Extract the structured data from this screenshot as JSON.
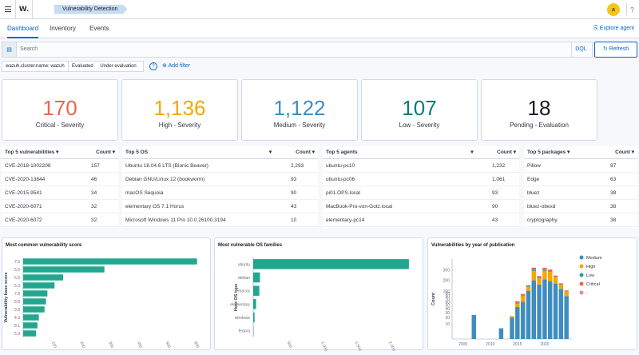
{
  "topbar": {
    "logo": "W.",
    "breadcrumb": "Vulnerability Detection",
    "avatar": "a",
    "help": "?"
  },
  "tabs": [
    {
      "label": "Dashboard",
      "active": true
    },
    {
      "label": "Inventory",
      "active": false
    },
    {
      "label": "Events",
      "active": false
    }
  ],
  "explore_agent": "Explore agent",
  "search": {
    "placeholder": "Search",
    "dql": "DQL",
    "refresh": "Refresh"
  },
  "filters": {
    "cluster": "wazuh.cluster.name: wazuh",
    "evaluated": "Evaluated",
    "under_evaluation": "Under evaluation",
    "add_filter": "Add filter"
  },
  "stats": [
    {
      "value": "170",
      "label": "Critical - Severity",
      "color": "#bd271e"
    },
    {
      "value": "1,136",
      "label": "High - Severity",
      "color": "#f5a700"
    },
    {
      "value": "1,122",
      "label": "Medium - Severity",
      "color": "#3f8dbf"
    },
    {
      "value": "107",
      "label": "Low - Severity",
      "color": "#017d73"
    },
    {
      "value": "18",
      "label": "Pending - Evaluation",
      "color": "#1a1c21"
    }
  ],
  "tables": [
    {
      "title": "Top 5 vulnerabilities",
      "count_label": "Count",
      "rows": [
        [
          "CVE-2018-1002208",
          "157"
        ],
        [
          "CVE-2020-13844",
          "46"
        ],
        [
          "CVE-2015-9541",
          "34"
        ],
        [
          "CVE-2020-6071",
          "32"
        ],
        [
          "CVE-2020-6072",
          "32"
        ]
      ]
    },
    {
      "title": "Top 5 OS",
      "count_label": "Count",
      "rows": [
        [
          "Ubuntu 18.04.6 LTS (Bionic Beaver)",
          "2,293"
        ],
        [
          "Debian GNU/Linux 12 (bookworm)",
          "93"
        ],
        [
          "macOS Sequoia",
          "90"
        ],
        [
          "elementary OS 7.1 Horus",
          "43"
        ],
        [
          "Microsoft Windows 11 Pro 10.0.26100.3194",
          "10"
        ]
      ]
    },
    {
      "title": "Top 5 agents",
      "count_label": "Count",
      "rows": [
        [
          "ubuntu-pc10",
          "1,232"
        ],
        [
          "ubuntu-pc06",
          "1,061"
        ],
        [
          "pi01.OPS.local",
          "93"
        ],
        [
          "MacBook-Pro-von-Gotz.local",
          "90"
        ],
        [
          "elementary-pc14",
          "43"
        ]
      ]
    },
    {
      "title": "Top 5 packages",
      "count_label": "Count",
      "rows": [
        [
          "Pillow",
          "87"
        ],
        [
          "Edge",
          "63"
        ],
        [
          "bluez",
          "38"
        ],
        [
          "bluez-obexd",
          "38"
        ],
        [
          "cryptography",
          "38"
        ]
      ]
    }
  ],
  "chart_data": [
    {
      "type": "bar",
      "orientation": "horizontal",
      "title": "Most common vulnerability score",
      "ylabel": "Vulnerability base score",
      "categories": [
        "7.5",
        "5.5",
        "6.5",
        "5.3",
        "7.8",
        "8.8",
        "9.8",
        "4.3",
        "8.1",
        "5.9"
      ],
      "values": [
        610,
        285,
        140,
        110,
        85,
        80,
        75,
        55,
        50,
        45
      ],
      "xticks": [
        "100",
        "200",
        "300",
        "400",
        "500",
        "600"
      ],
      "xlim": [
        0,
        650
      ],
      "color": "#20a88f"
    },
    {
      "type": "bar",
      "orientation": "horizontal",
      "title": "Most vulnerable OS families",
      "ylabel": "Host OS type",
      "categories": [
        "ubuntu",
        "debian",
        "macos",
        "elementary",
        "windows",
        "fedora"
      ],
      "values": [
        2293,
        100,
        90,
        43,
        20,
        5
      ],
      "xticks": [
        "500",
        "1,000",
        "1,500",
        "2,000"
      ],
      "xlim": [
        0,
        2400
      ],
      "color": "#20a88f"
    },
    {
      "type": "bar",
      "stacked": true,
      "title": "Vulnerabilities by year of publication",
      "ylabel": "Count",
      "yticks": [
        "10",
        "20",
        "30",
        "40",
        "50",
        "60",
        "70",
        "80",
        "90",
        "100",
        "200",
        "300"
      ],
      "xticks": [
        "2005",
        "2010",
        "2015",
        "2020"
      ],
      "legend": [
        {
          "name": "Medium",
          "color": "#3f8dbf"
        },
        {
          "name": "High",
          "color": "#f5a700"
        },
        {
          "name": "Low",
          "color": "#20a88f"
        },
        {
          "name": "Critical",
          "color": "#e7664c"
        },
        {
          "name": "-",
          "color": "#e58ba6"
        }
      ],
      "x": [
        2007,
        2012,
        2014,
        2015,
        2016,
        2017,
        2018,
        2019,
        2020,
        2021,
        2022,
        2023,
        2024
      ],
      "series": [
        {
          "name": "Medium",
          "values": [
            25,
            5,
            20,
            45,
            60,
            100,
            200,
            160,
            210,
            190,
            170,
            120,
            80
          ]
        },
        {
          "name": "High",
          "values": [
            0,
            0,
            3,
            10,
            20,
            40,
            90,
            60,
            80,
            90,
            60,
            40,
            20
          ]
        },
        {
          "name": "Low",
          "values": [
            0,
            0,
            0,
            2,
            3,
            5,
            8,
            5,
            6,
            5,
            4,
            3,
            2
          ]
        },
        {
          "name": "Critical",
          "values": [
            0,
            0,
            0,
            5,
            5,
            10,
            20,
            15,
            20,
            15,
            10,
            8,
            5
          ]
        },
        {
          "name": "-",
          "values": [
            0,
            0,
            0,
            0,
            0,
            0,
            2,
            1,
            3,
            2,
            2,
            2,
            1
          ]
        }
      ]
    }
  ]
}
